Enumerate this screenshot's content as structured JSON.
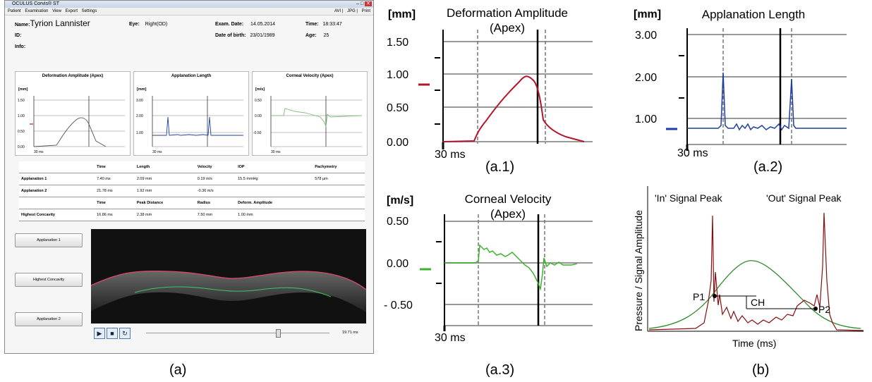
{
  "window": {
    "title": "OCULUS Corvis® ST",
    "menu": [
      "Patient",
      "Examination",
      "View",
      "Export",
      "Settings"
    ],
    "menu_right": [
      "AVI",
      "JPG",
      "Print"
    ]
  },
  "patient": {
    "name_label": "Name:",
    "name": "Tyrion Lannister",
    "eye_label": "Eye:",
    "eye": "Right(OD)",
    "exam_date_label": "Exam. Date:",
    "exam_date": "14.05.2014",
    "time_label": "Time:",
    "time": "18:33:47",
    "id_label": "ID:",
    "dob_label": "Date of birth:",
    "dob": "23/01/1989",
    "age_label": "Age:",
    "age": "25",
    "info_label": "Info:"
  },
  "mini_charts": {
    "deformation": {
      "title": "Deformation Amplitude (Apex)",
      "unit": "[mm]",
      "ticks": [
        "1.50",
        "1.00",
        "0.50",
        "0.00"
      ],
      "x_label": "30 ms"
    },
    "applanation": {
      "title": "Applanation Length",
      "unit": "[mm]",
      "ticks": [
        "3.00",
        "2.00",
        "1.00"
      ],
      "x_label": "30 ms"
    },
    "velocity": {
      "title": "Corneal Velocity (Apex)",
      "unit": "[m/s]",
      "ticks": [
        "0.50",
        "0.00",
        "-0.50"
      ],
      "x_label": "30 ms"
    }
  },
  "results": {
    "header1": [
      "",
      "Time",
      "Length",
      "Velocity",
      "IOP",
      "Pachymetry"
    ],
    "row1": [
      "Applanation 1",
      "7.40 ms",
      "2.09 mm",
      "0.19 m/s",
      "15.5 mmHg",
      "578 µm"
    ],
    "row2": [
      "Applanation 2",
      "21.78 ms",
      "1.92 mm",
      "-0.36 m/s",
      "",
      ""
    ],
    "header2": [
      "",
      "Time",
      "Peak Distance",
      "Radius",
      "Deform. Amplitude",
      ""
    ],
    "row3": [
      "Highest Concavity",
      "16.86 ms",
      "2.38 mm",
      "7.50 mm",
      "1.00 mm",
      ""
    ]
  },
  "buttons": {
    "applanation1": "Applanation 1",
    "highest_concavity": "Highest Concavity",
    "applanation2": "Applanation 2"
  },
  "player": {
    "time": "19.71 ms",
    "progress": 0.72
  },
  "panels": {
    "a1": {
      "unit": "[mm]",
      "title": "Deformation Amplitude\n(Apex)",
      "ticks": [
        "1.50",
        "1.00",
        "0.50",
        "0.00"
      ],
      "x_label": "30 ms",
      "caption": "(a.1)",
      "color": "#b5152b"
    },
    "a2": {
      "unit": "[mm]",
      "title": "Applanation Length",
      "ticks": [
        "3.00",
        "2.00",
        "1.00"
      ],
      "x_label": "30 ms",
      "caption": "(a.2)",
      "color": "#1f3fa0"
    },
    "a3": {
      "unit": "[m/s]",
      "title": "Corneal Velocity\n(Apex)",
      "ticks": [
        "0.50",
        "0.00",
        "- 0.50"
      ],
      "x_label": "30 ms",
      "caption": "(a.3)",
      "color": "#3bb32c"
    },
    "b": {
      "ylabel": "Pressure / Signal Amplitude",
      "xlabel": "Time (ms)",
      "in_peak": "'In' Signal Peak",
      "out_peak": "'Out' Signal Peak",
      "p1": "P1",
      "p2": "P2",
      "ch": "CH",
      "caption": "(b)"
    }
  },
  "captions": {
    "a": "(a)"
  }
}
